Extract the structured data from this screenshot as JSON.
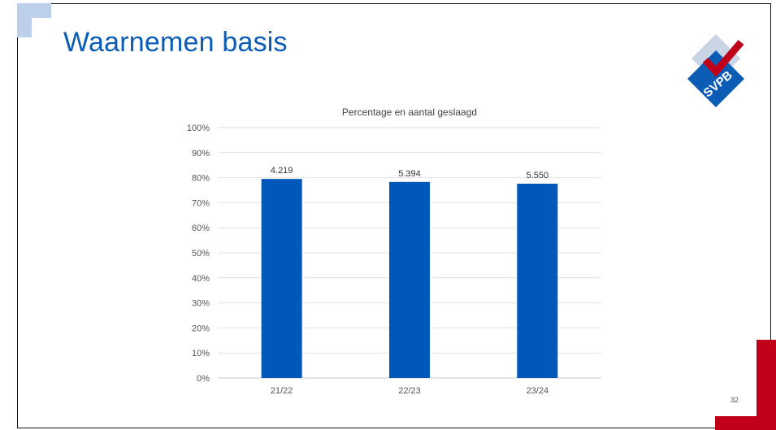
{
  "slide": {
    "title": "Waarnemen basis",
    "page_number": "32",
    "logo_text": "SVPB",
    "accent_color": "#c00018",
    "title_color": "#0a5cb4"
  },
  "chart_data": {
    "type": "bar",
    "title": "Percentage en aantal geslaagd",
    "categories": [
      "21/22",
      "22/23",
      "23/24"
    ],
    "values": [
      79.5,
      78.3,
      77.6
    ],
    "data_labels": [
      "4.219",
      "5.394",
      "5.550"
    ],
    "ylim": [
      0,
      100
    ],
    "yticks": [
      "0%",
      "10%",
      "20%",
      "30%",
      "40%",
      "50%",
      "60%",
      "70%",
      "80%",
      "90%",
      "100%"
    ],
    "grid": true,
    "bar_color": "#0058b8"
  }
}
